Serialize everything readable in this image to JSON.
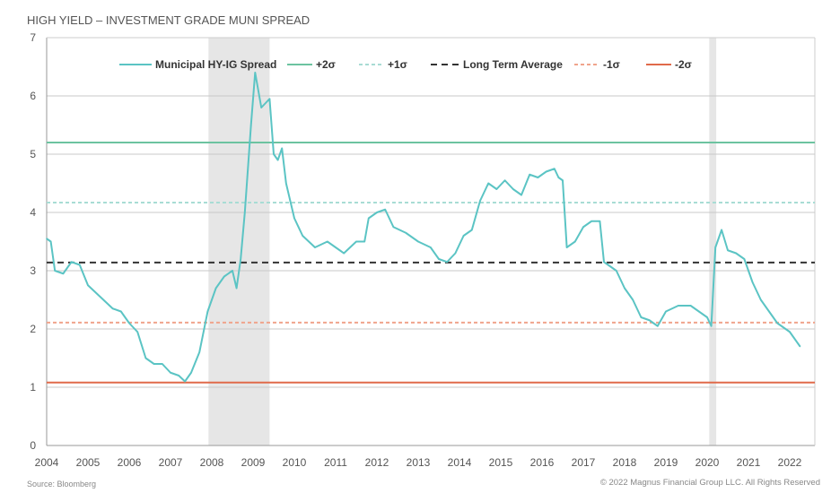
{
  "title": "HIGH YIELD – INVESTMENT GRADE MUNI SPREAD",
  "source": "Source: Bloomberg",
  "copyright": "© 2022 Magnus Financial Group LLC. All Rights Reserved",
  "chart_data": {
    "type": "line",
    "title": "HIGH YIELD – INVESTMENT GRADE MUNI SPREAD",
    "xlabel": "",
    "ylabel": "",
    "xlim": [
      2004,
      2022.6
    ],
    "ylim": [
      0,
      7
    ],
    "yticks": [
      0,
      1,
      2,
      3,
      4,
      5,
      6,
      7
    ],
    "xticks": [
      2004,
      2005,
      2006,
      2007,
      2008,
      2009,
      2010,
      2011,
      2012,
      2013,
      2014,
      2015,
      2016,
      2017,
      2018,
      2019,
      2020,
      2021,
      2022
    ],
    "legend_position": "top",
    "colors": {
      "spread": "#5bc4c4",
      "plus2": "#6cc3a0",
      "plus1": "#a8dcd4",
      "avg": "#333333",
      "minus1": "#f0a48c",
      "minus2": "#e06a4a",
      "recession": "#e6e6e6"
    },
    "recessions": [
      [
        2007.92,
        2009.4
      ],
      [
        2020.05,
        2020.22
      ]
    ],
    "reference_lines": [
      {
        "name": "+2σ",
        "value": 5.2,
        "style": "solid",
        "color_key": "plus2"
      },
      {
        "name": "+1σ",
        "value": 4.17,
        "style": "dashed",
        "color_key": "plus1"
      },
      {
        "name": "Long Term Average",
        "value": 3.14,
        "style": "longdash",
        "color_key": "avg"
      },
      {
        "name": "-1σ",
        "value": 2.11,
        "style": "dashed",
        "color_key": "minus1"
      },
      {
        "name": "-2σ",
        "value": 1.08,
        "style": "solid",
        "color_key": "minus2"
      }
    ],
    "series": [
      {
        "name": "Municipal HY-IG Spread",
        "points": [
          [
            2004.0,
            3.55
          ],
          [
            2004.1,
            3.5
          ],
          [
            2004.2,
            3.0
          ],
          [
            2004.4,
            2.95
          ],
          [
            2004.6,
            3.15
          ],
          [
            2004.8,
            3.1
          ],
          [
            2005.0,
            2.75
          ],
          [
            2005.3,
            2.55
          ],
          [
            2005.6,
            2.35
          ],
          [
            2005.8,
            2.3
          ],
          [
            2006.0,
            2.1
          ],
          [
            2006.2,
            1.95
          ],
          [
            2006.4,
            1.5
          ],
          [
            2006.6,
            1.4
          ],
          [
            2006.8,
            1.4
          ],
          [
            2007.0,
            1.25
          ],
          [
            2007.2,
            1.2
          ],
          [
            2007.35,
            1.1
          ],
          [
            2007.5,
            1.25
          ],
          [
            2007.7,
            1.6
          ],
          [
            2007.9,
            2.3
          ],
          [
            2008.1,
            2.7
          ],
          [
            2008.3,
            2.9
          ],
          [
            2008.5,
            3.0
          ],
          [
            2008.6,
            2.7
          ],
          [
            2008.7,
            3.2
          ],
          [
            2008.8,
            4.0
          ],
          [
            2008.95,
            5.5
          ],
          [
            2009.05,
            6.4
          ],
          [
            2009.2,
            5.8
          ],
          [
            2009.4,
            5.95
          ],
          [
            2009.5,
            5.0
          ],
          [
            2009.6,
            4.9
          ],
          [
            2009.7,
            5.1
          ],
          [
            2009.8,
            4.5
          ],
          [
            2010.0,
            3.9
          ],
          [
            2010.2,
            3.6
          ],
          [
            2010.5,
            3.4
          ],
          [
            2010.8,
            3.5
          ],
          [
            2011.0,
            3.4
          ],
          [
            2011.2,
            3.3
          ],
          [
            2011.5,
            3.5
          ],
          [
            2011.7,
            3.5
          ],
          [
            2011.8,
            3.9
          ],
          [
            2012.0,
            4.0
          ],
          [
            2012.2,
            4.05
          ],
          [
            2012.4,
            3.75
          ],
          [
            2012.7,
            3.65
          ],
          [
            2013.0,
            3.5
          ],
          [
            2013.3,
            3.4
          ],
          [
            2013.5,
            3.2
          ],
          [
            2013.7,
            3.15
          ],
          [
            2013.9,
            3.3
          ],
          [
            2014.1,
            3.6
          ],
          [
            2014.3,
            3.7
          ],
          [
            2014.5,
            4.2
          ],
          [
            2014.7,
            4.5
          ],
          [
            2014.9,
            4.4
          ],
          [
            2015.1,
            4.55
          ],
          [
            2015.3,
            4.4
          ],
          [
            2015.5,
            4.3
          ],
          [
            2015.7,
            4.65
          ],
          [
            2015.9,
            4.6
          ],
          [
            2016.1,
            4.7
          ],
          [
            2016.3,
            4.75
          ],
          [
            2016.4,
            4.6
          ],
          [
            2016.5,
            4.55
          ],
          [
            2016.6,
            3.4
          ],
          [
            2016.8,
            3.5
          ],
          [
            2017.0,
            3.75
          ],
          [
            2017.2,
            3.85
          ],
          [
            2017.4,
            3.85
          ],
          [
            2017.5,
            3.15
          ],
          [
            2017.8,
            3.0
          ],
          [
            2018.0,
            2.7
          ],
          [
            2018.2,
            2.5
          ],
          [
            2018.4,
            2.2
          ],
          [
            2018.6,
            2.15
          ],
          [
            2018.8,
            2.05
          ],
          [
            2019.0,
            2.3
          ],
          [
            2019.3,
            2.4
          ],
          [
            2019.6,
            2.4
          ],
          [
            2019.8,
            2.3
          ],
          [
            2020.0,
            2.2
          ],
          [
            2020.1,
            2.05
          ],
          [
            2020.2,
            3.4
          ],
          [
            2020.35,
            3.7
          ],
          [
            2020.5,
            3.35
          ],
          [
            2020.7,
            3.3
          ],
          [
            2020.9,
            3.2
          ],
          [
            2021.1,
            2.8
          ],
          [
            2021.3,
            2.5
          ],
          [
            2021.5,
            2.3
          ],
          [
            2021.7,
            2.1
          ],
          [
            2021.9,
            2.0
          ],
          [
            2022.0,
            1.95
          ],
          [
            2022.1,
            1.85
          ],
          [
            2022.2,
            1.75
          ],
          [
            2022.25,
            1.7
          ]
        ]
      }
    ]
  }
}
